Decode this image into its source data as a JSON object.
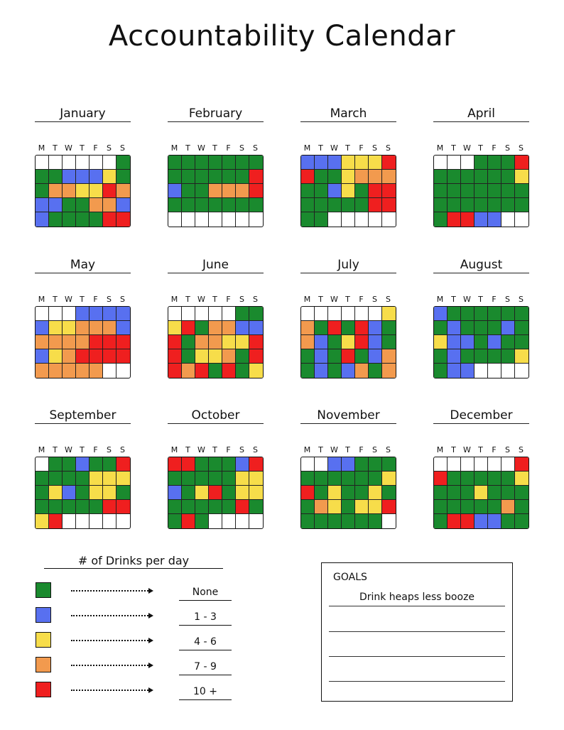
{
  "title": "Accountability Calendar",
  "weekdays": [
    "M",
    "T",
    "W",
    "T",
    "F",
    "S",
    "S"
  ],
  "colors": {
    "g": "#1a8a2e",
    "b": "#5870f0",
    "y": "#f7dd4a",
    "o": "#f29a4e",
    "r": "#ef1f1f"
  },
  "months": [
    {
      "name": "January",
      "rows": [
        "______g",
        "ggbbbyg",
        "gooyyro",
        "bbggoob",
        "bggggrr"
      ]
    },
    {
      "name": "February",
      "rows": [
        "ggggggg",
        "ggggggr",
        "bggooor",
        "ggggggg",
        "_______"
      ]
    },
    {
      "name": "March",
      "rows": [
        "bbbyyyr",
        "rggyooo",
        "ggbygrr",
        "gggggrr",
        "gg_____"
      ]
    },
    {
      "name": "April",
      "rows": [
        "___gggr",
        "ggggggy",
        "ggggggg",
        "ggggggg",
        "grrbb__"
      ]
    },
    {
      "name": "May",
      "rows": [
        "___bbbb",
        "byyooob",
        "oooorrr",
        "byorrrr",
        "ooooo__"
      ]
    },
    {
      "name": "June",
      "rows": [
        "_____gg",
        "yrgoobb",
        "rgooyyr",
        "rgyyogr",
        "rorgrgy"
      ]
    },
    {
      "name": "July",
      "rows": [
        "______y",
        "ogrgrbg",
        "obgyrbg",
        "gbgrgbo",
        "gbgbogo"
      ]
    },
    {
      "name": "August",
      "rows": [
        "bgggggg",
        "gbgggbg",
        "ybbgbgg",
        "gbggggy",
        "gbb____"
      ]
    },
    {
      "name": "September",
      "rows": [
        "_ggbggr",
        "ggggyyy",
        "gybgyyg",
        "gggggrr",
        "yr_____"
      ]
    },
    {
      "name": "October",
      "rows": [
        "rrgggbr",
        "gggggyy",
        "bgyrgyy",
        "gggggrg",
        "grg____"
      ]
    },
    {
      "name": "November",
      "rows": [
        "__bbggg",
        "ggggggy",
        "rgyggyg",
        "goygyyr",
        "gggggg_"
      ]
    },
    {
      "name": "December",
      "rows": [
        "______r",
        "rgggggy",
        "gggyggg",
        "gggggog",
        "grrbbgg"
      ]
    }
  ],
  "legend": {
    "title": "# of Drinks per day",
    "items": [
      {
        "color": "g",
        "label": "None"
      },
      {
        "color": "b",
        "label": "1 - 3"
      },
      {
        "color": "y",
        "label": "4 - 6"
      },
      {
        "color": "o",
        "label": "7 - 9"
      },
      {
        "color": "r",
        "label": "10 +"
      }
    ]
  },
  "goals": {
    "heading": "GOALS",
    "lines": [
      "Drink heaps less booze",
      "",
      "",
      ""
    ]
  }
}
